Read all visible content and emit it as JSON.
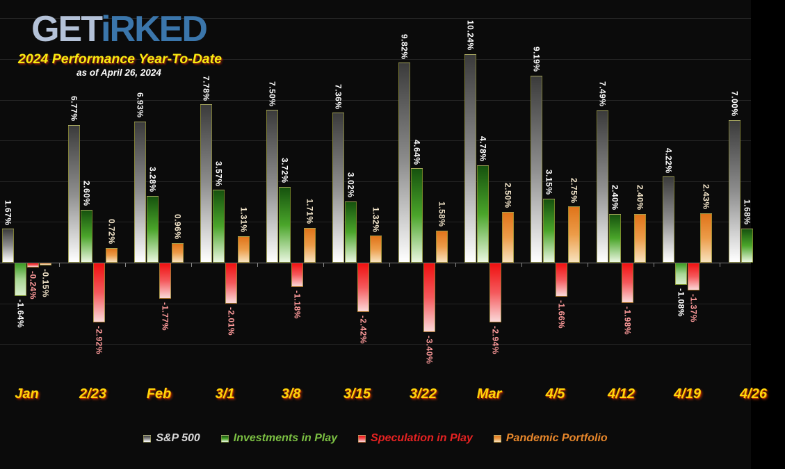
{
  "brand": {
    "logo_get": "GET",
    "logo_i": "i",
    "logo_rked": "RKED"
  },
  "chart_data": {
    "type": "bar",
    "title": "2024 Performance Year-To-Date",
    "subtitle": "as of April 26, 2024",
    "categories": [
      "Jan",
      "2/23",
      "Feb",
      "3/1",
      "3/8",
      "3/15",
      "3/22",
      "Mar",
      "4/5",
      "4/12",
      "4/19",
      "4/26"
    ],
    "series": [
      {
        "name": "S&P 500",
        "legend_color": "#d9d9d9",
        "label_color": "#ffffff",
        "gradient_pos": [
          "#3b3b3b",
          "#8e8e8e",
          "#ffffff"
        ],
        "gradient_neg": [
          "#8e8e8e",
          "#c9c9c9",
          "#ffffff"
        ],
        "values": [
          1.67,
          6.77,
          6.93,
          7.78,
          7.5,
          7.36,
          9.82,
          10.24,
          9.19,
          7.49,
          4.22,
          7.0
        ]
      },
      {
        "name": "Investments in Play",
        "legend_color": "#7cc143",
        "label_color": "#ffffff",
        "gradient_pos": [
          "#16520e",
          "#4aa52a",
          "#eaf6e0"
        ],
        "gradient_neg": [
          "#3a9a22",
          "#a8d694",
          "#d9eecd"
        ],
        "values": [
          -1.64,
          2.6,
          3.28,
          3.57,
          3.72,
          3.02,
          4.64,
          4.78,
          3.15,
          2.4,
          -1.08,
          1.68
        ]
      },
      {
        "name": "Speculation in Play",
        "legend_color": "#e62222",
        "label_color": "#ff9b9b",
        "gradient_pos": [
          "#f01010",
          "#f4595c",
          "#fbd9d9"
        ],
        "gradient_neg": [
          "#f01010",
          "#f4595c",
          "#fbd9d9"
        ],
        "values": [
          -0.24,
          -2.92,
          -1.77,
          -2.01,
          -1.18,
          -2.42,
          -3.4,
          -2.94,
          -1.66,
          -1.98,
          -1.37,
          null
        ]
      },
      {
        "name": "Pandemic Portfolio",
        "legend_color": "#e8872b",
        "label_color": "#f2e4c9",
        "gradient_pos": [
          "#e0741a",
          "#ec9c49",
          "#f8e2bd"
        ],
        "gradient_neg": [
          "#e0741a",
          "#f3c896",
          "#f8e6cc"
        ],
        "values": [
          -0.15,
          0.72,
          0.96,
          1.31,
          1.71,
          1.32,
          1.58,
          2.5,
          2.75,
          2.4,
          2.43,
          null
        ]
      }
    ],
    "value_suffix": "%",
    "ylim": [
      -5,
      12
    ],
    "gridline_values": [
      12,
      10,
      8,
      6,
      4,
      2,
      -2,
      -4
    ],
    "axis_label_color": "#ffd60a",
    "legend_position": "bottom",
    "grid": true
  }
}
